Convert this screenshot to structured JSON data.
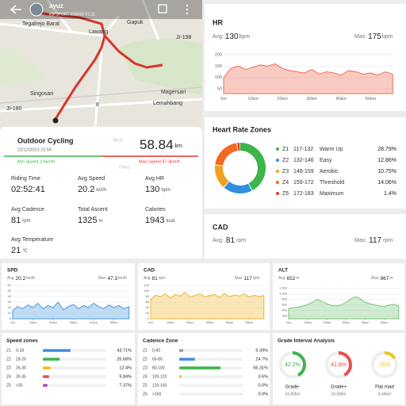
{
  "map": {
    "device": "ayuz",
    "subtitle": "iGPSPORT IGS618 V1.11",
    "labels": [
      "Tegalrejo Barat",
      "Gapuk",
      "Lawang",
      "JI-198",
      "Singosari",
      "Magersari",
      "Lemahbang",
      "JI-180",
      "8",
      "MLG",
      "Pakis"
    ]
  },
  "summary": {
    "activity": "Outdoor Cycling",
    "datetime": "22/12/2023 22:59",
    "distance": "58.84",
    "distance_unit": "km",
    "min_speed": "Min Speed 2.6km/h",
    "max_speed": "Max Speed 47.3km/h"
  },
  "stats": [
    {
      "label": "Riding Time",
      "value": "02:52:41"
    },
    {
      "label": "Avg Speed",
      "value": "20.2",
      "unit": "km/h"
    },
    {
      "label": "Avg HR",
      "value": "130",
      "unit": "bpm"
    },
    {
      "label": "Avg Cadence",
      "value": "81",
      "unit": "rpm"
    },
    {
      "label": "Total Ascent",
      "value": "1325",
      "unit": "m"
    },
    {
      "label": "Calories",
      "value": "1943",
      "unit": "kcal"
    },
    {
      "label": "Avg Temperature",
      "value": "21",
      "unit": "℃"
    }
  ],
  "cad_card": {
    "title": "CAD",
    "avg_label": "Avg:",
    "avg": "81",
    "avg_unit": "rpm",
    "max_label": "Max:",
    "max": "117",
    "max_unit": "rpm"
  },
  "chart_data": [
    {
      "type": "area",
      "title": "HR",
      "avg_label": "Avg:",
      "avg": "130",
      "avg_unit": "bpm",
      "max_label": "Max:",
      "max": "175",
      "max_unit": "bpm",
      "color": "#f26b4f",
      "x": [
        0,
        2.5,
        5,
        7.5,
        10,
        12.5,
        15,
        17.5,
        20,
        22.5,
        25,
        27.5,
        30,
        32.5,
        35,
        37.5,
        40,
        42.5,
        45,
        47.5,
        50,
        52.5,
        55,
        57.5
      ],
      "values": [
        100,
        140,
        150,
        135,
        145,
        155,
        150,
        160,
        140,
        130,
        125,
        120,
        135,
        115,
        125,
        120,
        110,
        130,
        125,
        115,
        120,
        110,
        125,
        115
      ],
      "xlim": [
        0,
        58
      ],
      "ylim": [
        30,
        210
      ],
      "yticks": [
        200,
        150,
        100,
        50
      ],
      "xticks": [
        {
          "value": 0,
          "label": "0m"
        },
        {
          "value": 10,
          "label": "10km"
        },
        {
          "value": 20,
          "label": "20km"
        },
        {
          "value": 30,
          "label": "30km"
        },
        {
          "value": 40,
          "label": "40km"
        },
        {
          "value": 50,
          "label": "50km"
        }
      ]
    },
    {
      "type": "donut",
      "title": "Heart Rate Zones",
      "categories": [
        "Z1",
        "Z2",
        "Z3",
        "Z4",
        "Z5"
      ],
      "ranges": [
        "117-132",
        "132-146",
        "146-159",
        "159-172",
        "172-183"
      ],
      "names": [
        "Warm Up",
        "Easy",
        "Aerobic",
        "Threshold",
        "Maximum"
      ],
      "values": [
        28.79,
        12.86,
        10.75,
        14.06,
        1.4
      ],
      "value_labels": [
        "28.79%",
        "12.86%",
        "10.75%",
        "14.06%",
        "1.4%"
      ],
      "colors": [
        "#3cb54a",
        "#2f8fe0",
        "#f0a020",
        "#f06a1f",
        "#e8332a"
      ]
    },
    {
      "type": "area",
      "title": "SPD",
      "avg_label": "Avg",
      "avg": "20.2",
      "avg_unit": "km/h",
      "max_label": "Max",
      "max": "47.3",
      "max_unit": "km/h",
      "color": "#4a9be0",
      "x": [
        0,
        2.5,
        5,
        7.5,
        10,
        12.5,
        15,
        17.5,
        20,
        22.5,
        25,
        27.5,
        30,
        32.5,
        35,
        37.5,
        40,
        42.5,
        45,
        47.5,
        50,
        52.5,
        55,
        57.5
      ],
      "values": [
        15,
        22,
        18,
        25,
        20,
        28,
        18,
        24,
        20,
        30,
        16,
        22,
        26,
        18,
        24,
        20,
        28,
        22,
        18,
        25,
        20,
        24,
        18,
        22
      ],
      "xlim": [
        0,
        58
      ],
      "ylim": [
        0,
        60
      ],
      "yticks": [
        0,
        10,
        20,
        30,
        40,
        50,
        60
      ],
      "xticks": [
        {
          "value": 0,
          "label": "0m"
        },
        {
          "value": 10,
          "label": "10km"
        },
        {
          "value": 20,
          "label": "20km"
        },
        {
          "value": 30,
          "label": "30km"
        },
        {
          "value": 40,
          "label": "40km"
        },
        {
          "value": 50,
          "label": "50km"
        }
      ]
    },
    {
      "type": "area",
      "title": "CAD",
      "avg_label": "Avg",
      "avg": "81",
      "avg_unit": "rpm",
      "max_label": "Max",
      "max": "117",
      "max_unit": "rpm",
      "color": "#f2b632",
      "x": [
        0,
        2.5,
        5,
        7.5,
        10,
        12.5,
        15,
        17.5,
        20,
        22.5,
        25,
        27.5,
        30,
        32.5,
        35,
        37.5,
        40,
        42.5,
        45,
        47.5,
        50,
        52.5,
        55,
        57.5
      ],
      "values": [
        70,
        85,
        80,
        90,
        75,
        88,
        82,
        95,
        78,
        85,
        90,
        80,
        84,
        88,
        76,
        92,
        80,
        86,
        82,
        90,
        78,
        85,
        80,
        84
      ],
      "xlim": [
        0,
        58
      ],
      "ylim": [
        0,
        120
      ],
      "yticks": [
        0,
        20,
        40,
        60,
        80,
        100,
        120
      ],
      "xticks": [
        {
          "value": 0,
          "label": "0m"
        },
        {
          "value": 10,
          "label": "10km"
        },
        {
          "value": 20,
          "label": "20km"
        },
        {
          "value": 30,
          "label": "30km"
        },
        {
          "value": 40,
          "label": "40km"
        },
        {
          "value": 50,
          "label": "50km"
        }
      ]
    },
    {
      "type": "area",
      "title": "ALT",
      "avg_label": "Avg",
      "avg": "652",
      "avg_unit": "m",
      "max_label": "Max",
      "max": "967",
      "max_unit": "m",
      "color": "#7cc77c",
      "x": [
        0,
        2.5,
        5,
        7.5,
        10,
        12.5,
        15,
        17.5,
        20,
        22.5,
        25,
        27.5,
        30,
        32.5,
        35,
        37.5,
        40,
        42.5,
        45,
        47.5,
        50,
        52.5,
        55,
        57.5
      ],
      "values": [
        480,
        500,
        520,
        560,
        620,
        700,
        800,
        720,
        640,
        580,
        560,
        600,
        700,
        820,
        900,
        820,
        700,
        640,
        600,
        560,
        540,
        600,
        620,
        560
      ],
      "xlim": [
        0,
        58
      ],
      "ylim": [
        100,
        1300
      ],
      "yticks": [
        200,
        400,
        600,
        800,
        {
          "value": 1000,
          "label": "1,000"
        },
        {
          "value": 1200,
          "label": "1,200"
        }
      ],
      "xticks": [
        {
          "value": 0,
          "label": "0m"
        },
        {
          "value": 10,
          "label": "10km"
        },
        {
          "value": 20,
          "label": "20km"
        },
        {
          "value": 30,
          "label": "30km"
        },
        {
          "value": 40,
          "label": "40km"
        },
        {
          "value": 50,
          "label": "50km"
        }
      ]
    },
    {
      "type": "hbar",
      "title": "Speed zones",
      "categories": [
        "Z1",
        "Z2",
        "Z3",
        "Z4",
        "Z5"
      ],
      "ranges": [
        "0-18",
        "18-26",
        "26-30",
        "30-35",
        ">35"
      ],
      "values": [
        43.71,
        26.68,
        12.4,
        9.84,
        7.37
      ],
      "value_labels": [
        "43.71%",
        "26.68%",
        "12.4%",
        "9.84%",
        "7.37%"
      ],
      "colors": [
        "#3d8fe0",
        "#3cb54a",
        "#f0c419",
        "#e8504a",
        "#b04ac4"
      ]
    },
    {
      "type": "hbar",
      "title": "Cadence Zone",
      "categories": [
        "Z1",
        "Z2",
        "Z3",
        "Z4",
        "Z5",
        "Z6"
      ],
      "ranges": [
        "0-60",
        "60-80",
        "80-100",
        "100-120",
        "120-160",
        ">160"
      ],
      "values": [
        6.39,
        24.7,
        65.31,
        3.6,
        0.0,
        0.0
      ],
      "value_labels": [
        "6.39%",
        "24.7%",
        "65.31%",
        "3.6%",
        "0.0%",
        "0.0%"
      ],
      "colors": [
        "#8fa0b0",
        "#3d8fe0",
        "#3cb54a",
        "#f0c419",
        "#e8504a",
        "#b04ac4"
      ]
    },
    {
      "type": "rings",
      "title": "Grade Interval Analysis",
      "categories": [
        "Grade-",
        "Grade+",
        "Flat road"
      ],
      "values": [
        42.2,
        41.8,
        16
      ],
      "value_labels": [
        "42.2%",
        "41.8%",
        "16%"
      ],
      "distances": [
        "24.82km",
        "24.58km",
        "9.44km"
      ],
      "colors": [
        "#3cb54a",
        "#e8504a",
        "#f0c419"
      ]
    }
  ]
}
